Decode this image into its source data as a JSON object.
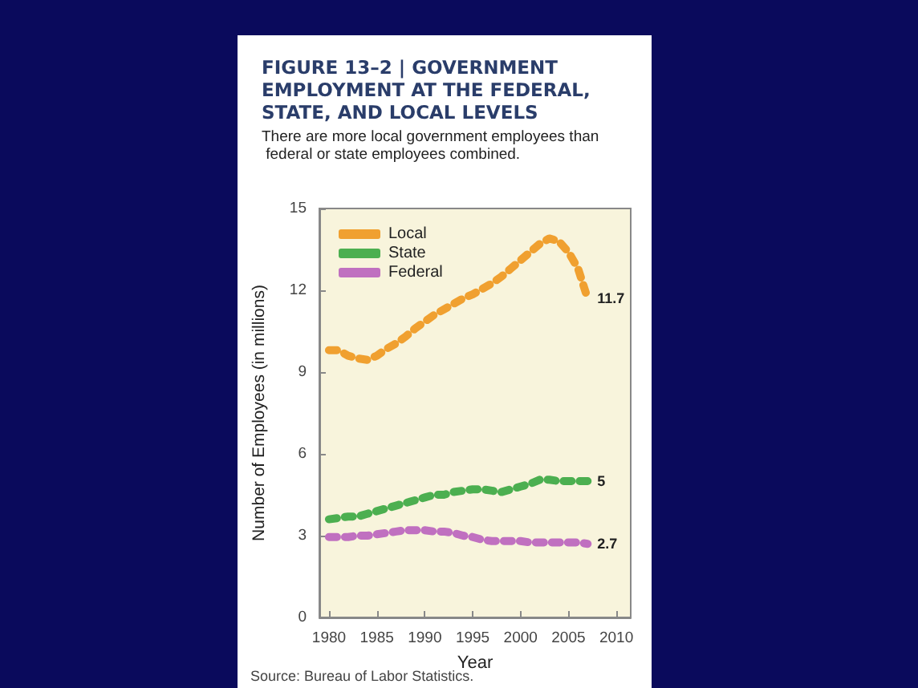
{
  "chart_data": {
    "type": "line",
    "title": "FIGURE 13–2 | GOVERNMENT EMPLOYMENT AT THE FEDERAL, STATE, AND LOCAL LEVELS",
    "subtitle": "There are more local government employees than federal or state employees combined.",
    "xlabel": "Year",
    "ylabel": "Number of Employees (in millions)",
    "annotations": [
      "Source: Bureau of Labor Statistics."
    ],
    "x": [
      1980,
      1981,
      1982,
      1983,
      1984,
      1985,
      1986,
      1987,
      1988,
      1989,
      1990,
      1991,
      1992,
      1993,
      1994,
      1995,
      1996,
      1997,
      1998,
      1999,
      2000,
      2001,
      2002,
      2003,
      2004,
      2005,
      2006,
      2007
    ],
    "series": [
      {
        "name": "Local",
        "color": "#f0a030",
        "values": [
          9.8,
          9.8,
          9.6,
          9.5,
          9.45,
          9.6,
          9.85,
          10.05,
          10.3,
          10.6,
          10.85,
          11.1,
          11.3,
          11.5,
          11.7,
          11.85,
          12.05,
          12.25,
          12.5,
          12.8,
          13.1,
          13.4,
          13.7,
          13.9,
          13.8,
          13.4,
          12.8,
          11.7
        ],
        "value_labels": [
          null,
          null,
          null,
          null,
          null,
          null,
          null,
          null,
          null,
          null,
          null,
          null,
          null,
          null,
          null,
          null,
          null,
          null,
          null,
          null,
          null,
          null,
          null,
          null,
          null,
          null,
          null,
          "11.7"
        ]
      },
      {
        "name": "State",
        "color": "#4caf50",
        "values": [
          3.6,
          3.65,
          3.7,
          3.7,
          3.8,
          3.9,
          4.0,
          4.1,
          4.2,
          4.3,
          4.4,
          4.5,
          4.5,
          4.6,
          4.65,
          4.7,
          4.7,
          4.65,
          4.6,
          4.7,
          4.8,
          4.9,
          5.05,
          5.05,
          5.0,
          5.0,
          5.0,
          5.0
        ],
        "value_labels": [
          null,
          null,
          null,
          null,
          null,
          null,
          null,
          null,
          null,
          null,
          null,
          null,
          null,
          null,
          null,
          null,
          null,
          null,
          null,
          null,
          null,
          null,
          null,
          null,
          null,
          null,
          null,
          "5"
        ]
      },
      {
        "name": "Federal",
        "color": "#c070c0",
        "values": [
          2.95,
          2.95,
          2.95,
          3.0,
          3.0,
          3.05,
          3.1,
          3.15,
          3.2,
          3.2,
          3.2,
          3.15,
          3.15,
          3.1,
          3.0,
          2.95,
          2.85,
          2.8,
          2.8,
          2.8,
          2.8,
          2.75,
          2.75,
          2.75,
          2.75,
          2.75,
          2.75,
          2.7
        ],
        "value_labels": [
          null,
          null,
          null,
          null,
          null,
          null,
          null,
          null,
          null,
          null,
          null,
          null,
          null,
          null,
          null,
          null,
          null,
          null,
          null,
          null,
          null,
          null,
          null,
          null,
          null,
          null,
          null,
          "2.7"
        ]
      }
    ],
    "xlim": [
      1979,
      2011.5
    ],
    "xticks": [
      1980,
      1985,
      1990,
      1995,
      2000,
      2005,
      2010
    ],
    "ylim": [
      0,
      15
    ],
    "yticks": [
      0,
      3,
      6,
      9,
      12,
      15
    ],
    "grid": false,
    "legend": "top left",
    "marker": "none",
    "line_style": "dotted"
  }
}
